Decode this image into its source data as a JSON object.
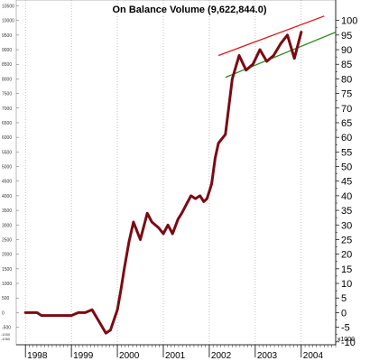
{
  "chart_data": {
    "type": "line",
    "title": "On Balance Volume (9,622,844.0)",
    "left_axis": {
      "ticks": [
        -500,
        0,
        500,
        1000,
        1500,
        2000,
        2500,
        3000,
        3500,
        4000,
        4500,
        5000,
        5500,
        6000,
        6500,
        7000,
        7500,
        8000,
        8500,
        9000,
        9500,
        10000,
        10500
      ],
      "ylim": [
        -1100,
        10700
      ],
      "bottom_marks": [
        "-1000",
        "-1060"
      ]
    },
    "right_axis": {
      "ticks": [
        -10,
        -5,
        0,
        5,
        10,
        15,
        20,
        25,
        30,
        35,
        40,
        45,
        50,
        55,
        60,
        65,
        70,
        75,
        80,
        85,
        90,
        95,
        100
      ],
      "scale_label": "x1000"
    },
    "x_labels": [
      "1998",
      "1999",
      "2000",
      "2001",
      "2002",
      "2003",
      "2004"
    ],
    "xlim": [
      1997.8,
      2004.75
    ],
    "grid": "vertical dotted",
    "series": [
      {
        "color": "#7a0a14",
        "x": [
          1998.0,
          1998.15,
          1998.25,
          1998.35,
          1998.5,
          1998.75,
          1999.0,
          1999.15,
          1999.3,
          1999.45,
          1999.6,
          1999.75,
          1999.85,
          2000.0,
          2000.08,
          2000.15,
          2000.25,
          2000.35,
          2000.5,
          2000.65,
          2000.75,
          2000.9,
          2001.0,
          2001.1,
          2001.2,
          2001.32,
          2001.4,
          2001.5,
          2001.6,
          2001.7,
          2001.8,
          2001.88,
          2001.95,
          2002.05,
          2002.13,
          2002.2,
          2002.35,
          2002.5,
          2002.65,
          2002.8,
          2002.95,
          2003.1,
          2003.25,
          2003.4,
          2003.55,
          2003.7,
          2003.85,
          2004.0
        ],
        "y": [
          0,
          0,
          0,
          -100,
          -100,
          -100,
          -100,
          0,
          0,
          100,
          -300,
          -700,
          -600,
          100,
          800,
          1500,
          2400,
          3100,
          2500,
          3400,
          3100,
          2900,
          2700,
          3000,
          2700,
          3200,
          3400,
          3700,
          4000,
          3900,
          4000,
          3800,
          3900,
          4400,
          5300,
          5800,
          6100,
          8000,
          8800,
          8300,
          8500,
          9000,
          8600,
          8800,
          9200,
          9500,
          8700,
          9600
        ]
      }
    ],
    "trendlines": [
      {
        "color": "#e01010",
        "x": [
          2002.2,
          2004.5
        ],
        "y": [
          8800,
          10150
        ]
      },
      {
        "color": "#2e8b1e",
        "x": [
          2002.35,
          2004.75
        ],
        "y": [
          8050,
          9600
        ]
      }
    ]
  }
}
